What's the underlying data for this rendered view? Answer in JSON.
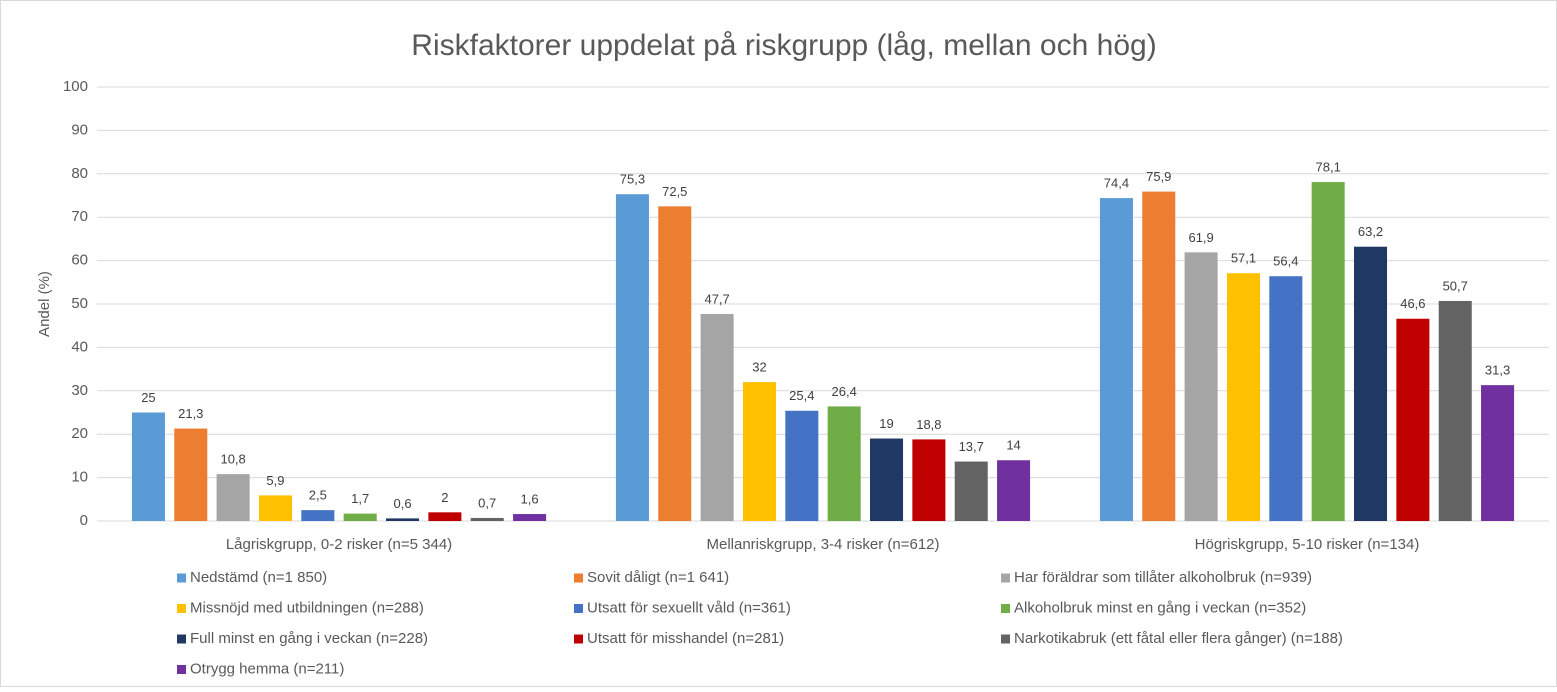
{
  "chart_data": {
    "type": "bar",
    "title": "Riskfaktorer uppdelat på riskgrupp (låg, mellan och hög)",
    "y_label": "Andel (%)",
    "categories": [
      "Lågriskgrupp, 0-2 risker (n=5 344)",
      "Mellanriskgrupp, 3-4 risker (n=612)",
      "Högriskgrupp, 5-10 risker (n=134)"
    ],
    "series": [
      {
        "name": "Nedstämd (n=1 850)",
        "color": "#5b9bd5",
        "values": [
          25,
          75.3,
          74.4
        ],
        "value_labels": [
          "25",
          "75,3",
          "74,4"
        ]
      },
      {
        "name": "Sovit dåligt (n=1 641)",
        "color": "#ed7d31",
        "values": [
          21.3,
          72.5,
          75.9
        ],
        "value_labels": [
          "21,3",
          "72,5",
          "75,9"
        ]
      },
      {
        "name": "Har föräldrar som tillåter alkoholbruk (n=939)",
        "color": "#a5a5a5",
        "values": [
          10.8,
          47.7,
          61.9
        ],
        "value_labels": [
          "10,8",
          "47,7",
          "61,9"
        ]
      },
      {
        "name": "Missnöjd med utbildningen (n=288)",
        "color": "#ffc000",
        "values": [
          5.9,
          32,
          57.1
        ],
        "value_labels": [
          "5,9",
          "32",
          "57,1"
        ]
      },
      {
        "name": "Utsatt för sexuellt våld (n=361)",
        "color": "#4472c4",
        "values": [
          2.5,
          25.4,
          56.4
        ],
        "value_labels": [
          "2,5",
          "25,4",
          "56,4"
        ]
      },
      {
        "name": "Alkoholbruk minst en gång i veckan (n=352)",
        "color": "#70ad47",
        "values": [
          1.7,
          26.4,
          78.1
        ],
        "value_labels": [
          "1,7",
          "26,4",
          "78,1"
        ]
      },
      {
        "name": "Full minst en gång i veckan (n=228)",
        "color": "#203864",
        "values": [
          0.6,
          19,
          63.2
        ],
        "value_labels": [
          "0,6",
          "19",
          "63,2"
        ]
      },
      {
        "name": "Utsatt för misshandel (n=281)",
        "color": "#c00000",
        "values": [
          2,
          18.8,
          46.6
        ],
        "value_labels": [
          "2",
          "18,8",
          "46,6"
        ]
      },
      {
        "name": "Narkotikabruk (ett fåtal eller flera gånger) (n=188)",
        "color": "#636363",
        "values": [
          0.7,
          13.7,
          50.7
        ],
        "value_labels": [
          "0,7",
          "13,7",
          "50,7"
        ]
      },
      {
        "name": "Otrygg hemma (n=211)",
        "color": "#7030a0",
        "values": [
          1.6,
          14,
          31.3
        ],
        "value_labels": [
          "1,6",
          "14",
          "31,3"
        ]
      }
    ],
    "ylim": [
      0,
      100
    ],
    "yticks": [
      0,
      10,
      20,
      30,
      40,
      50,
      60,
      70,
      80,
      90,
      100
    ],
    "grid": true,
    "legend": "bottom"
  }
}
